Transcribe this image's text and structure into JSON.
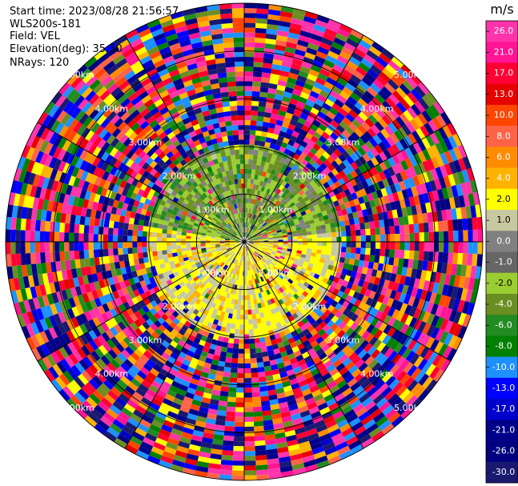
{
  "header": {
    "start_time": "Start time: 2023/08/28 21:56:57",
    "instrument": "WLS200s-181",
    "field": "Field: VEL",
    "elevation": "Elevation(deg): 35.30",
    "nrays": "NRays: 120"
  },
  "chart_data": {
    "type": "ppi",
    "field": "VEL",
    "units": "m/s",
    "elevation_deg": 35.3,
    "nrays": 120,
    "range_ring_labels": [
      "1.00km",
      "2.00km",
      "3.00km",
      "4.00km",
      "5.00km"
    ],
    "colorbar": {
      "title": "m/s",
      "ticks": [
        "26.0",
        "21.0",
        "17.0",
        "13.0",
        "10.0",
        "8.0",
        "6.0",
        "4.0",
        "2.0",
        "1.0",
        "0.0",
        "-1.0",
        "-2.0",
        "-4.0",
        "-6.0",
        "-8.0",
        "-10.0",
        "-13.0",
        "-17.0",
        "-21.0",
        "-26.0",
        "-30.0"
      ],
      "colors": [
        "#ff33aa",
        "#ff1493",
        "#ff0033",
        "#e60000",
        "#ff4500",
        "#ff6347",
        "#ff8c00",
        "#ffb300",
        "#ffff00",
        "#c8c8a0",
        "#808080",
        "#666666",
        "#9acd32",
        "#6b8e23",
        "#228b22",
        "#008000",
        "#1e90ff",
        "#0000ff",
        "#0000cd",
        "#00008b",
        "#000080",
        "#191970"
      ]
    }
  }
}
